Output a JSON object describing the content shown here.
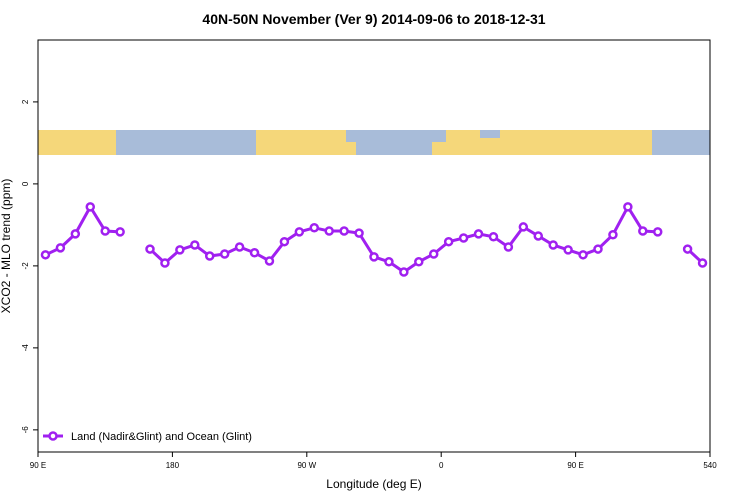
{
  "chart_data": {
    "type": "line",
    "title": "40N-50N November (Ver 9)   2014-09-06 to 2018-12-31",
    "xlabel": "Longitude (deg E)",
    "ylabel": "XCO2 - MLO trend (ppm)",
    "x": [
      95,
      105,
      115,
      125,
      135,
      145,
      155,
      165,
      175,
      185,
      195,
      205,
      215,
      225,
      235,
      245,
      255,
      265,
      275,
      285,
      295,
      305,
      315,
      325,
      335,
      345,
      355,
      365,
      375,
      385,
      395,
      405,
      415,
      425,
      435,
      445,
      455,
      465,
      475,
      485,
      495,
      505,
      515,
      525,
      535
    ],
    "series": [
      {
        "name": "Land (Nadir&Glint) and Ocean (Glint)",
        "color": "#a020f0",
        "values": [
          -1.73,
          -1.56,
          -1.22,
          -0.56,
          -1.15,
          -1.17,
          null,
          -1.59,
          -1.93,
          -1.61,
          -1.49,
          -1.76,
          -1.71,
          -1.54,
          -1.68,
          -1.88,
          -1.41,
          -1.17,
          -1.07,
          -1.15,
          -1.15,
          -1.2,
          -1.78,
          -1.9,
          -2.15,
          -1.9,
          -1.71,
          -1.41,
          -1.32,
          -1.22,
          -1.29,
          -1.54,
          -1.05,
          -1.27,
          -1.49,
          -1.61,
          -1.73,
          -1.59,
          -1.24,
          -0.56,
          -1.15,
          -1.17,
          null,
          -1.59,
          -1.93
        ]
      }
    ],
    "xlim": [
      90,
      540
    ],
    "xticks": [
      {
        "value": 90,
        "label": "90 E"
      },
      180,
      {
        "value": 270,
        "label": "90 W"
      },
      {
        "value": 360,
        "label": "0"
      },
      {
        "value": 450,
        "label": "90 E"
      },
      540
    ],
    "ylim": [
      -6.54,
      3.51
    ],
    "yticks": [
      -6,
      -4,
      -2,
      0,
      2
    ],
    "legend": "bottom-left"
  }
}
